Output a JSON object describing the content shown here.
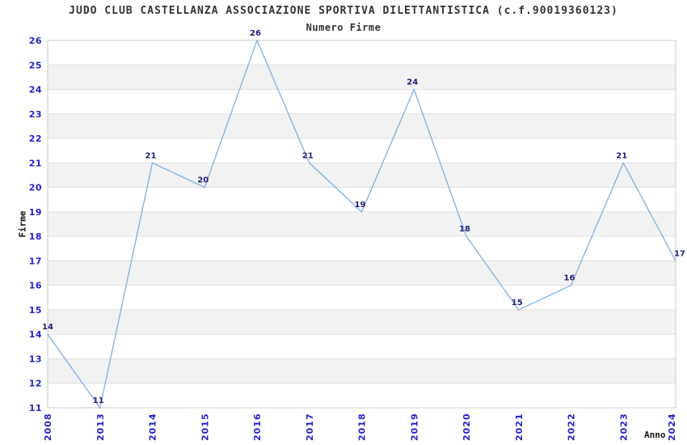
{
  "chart_data": {
    "type": "line",
    "title": "JUDO CLUB CASTELLANZA ASSOCIAZIONE SPORTIVA DILETTANTISTICA (c.f.90019360123)",
    "subtitle": "Numero Firme",
    "xlabel": "Anno",
    "ylabel": "Firme",
    "categories": [
      "2008",
      "2013",
      "2014",
      "2015",
      "2016",
      "2017",
      "2018",
      "2019",
      "2020",
      "2021",
      "2022",
      "2023",
      "2024"
    ],
    "values": [
      14,
      11,
      21,
      20,
      26,
      21,
      19,
      24,
      18,
      15,
      16,
      21,
      17
    ],
    "y_ticks": [
      11,
      12,
      13,
      14,
      15,
      16,
      17,
      18,
      19,
      20,
      21,
      22,
      23,
      24,
      25,
      26
    ],
    "ylim": [
      11,
      26
    ],
    "grid": "horizontal-bands",
    "legend": "none",
    "colors": {
      "line": "#7eb0e6",
      "data_label": "#1f1f7a",
      "tick_label": "#2222cc",
      "title": "#333333",
      "axis_title": "#111111",
      "band": "#f2f2f2",
      "gridline": "#e0e0e0",
      "border": "#c9c9c9",
      "background": "#ffffff"
    }
  }
}
